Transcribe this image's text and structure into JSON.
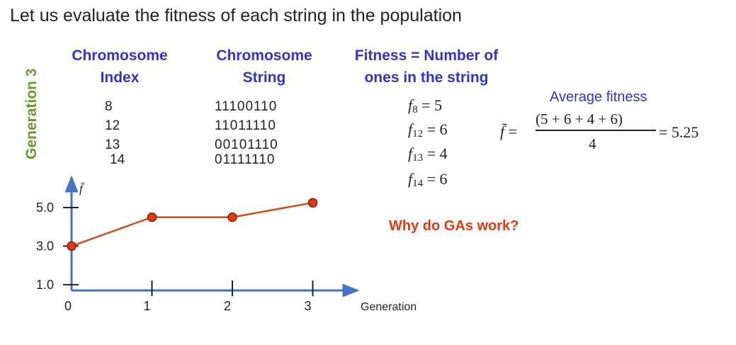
{
  "title": "Let us evaluate the fitness of each string in the population",
  "side_label": "Generation 3",
  "headers": {
    "index": [
      "Chromosome",
      "Index"
    ],
    "string": [
      "Chromosome",
      "String"
    ],
    "fitness": [
      "Fitness = Number of",
      "ones in the string"
    ]
  },
  "rows": [
    {
      "index": "8",
      "string": "11100110",
      "fit_sub": "8",
      "fit_val": "5"
    },
    {
      "index": "12",
      "string": "11011110",
      "fit_sub": "12",
      "fit_val": "6"
    },
    {
      "index": "13",
      "string": "00101110",
      "fit_sub": "13",
      "fit_val": "4"
    },
    {
      "index": "14",
      "string": "01111110",
      "fit_sub": "14",
      "fit_val": "6"
    }
  ],
  "average": {
    "label": "Average fitness",
    "symbol": "f̄",
    "numerator": "(5 + 6 + 4 + 6)",
    "denominator": "4",
    "result": "= 5.25"
  },
  "question": "Why do GAs work?",
  "colors": {
    "blue": "#3333cc",
    "green": "#6a9a2a",
    "red": "#e03a12",
    "axis": "#4472c4",
    "line": "#d24a1a"
  },
  "chart_data": {
    "type": "line",
    "xlabel": "Generation",
    "ylabel": "f̄",
    "x_ticks": [
      "0",
      "1",
      "2",
      "3"
    ],
    "y_ticks": [
      "1.0",
      "3.0",
      "5.0"
    ],
    "x": [
      0,
      1,
      2,
      3
    ],
    "values": [
      3.0,
      4.5,
      4.5,
      5.25
    ]
  }
}
